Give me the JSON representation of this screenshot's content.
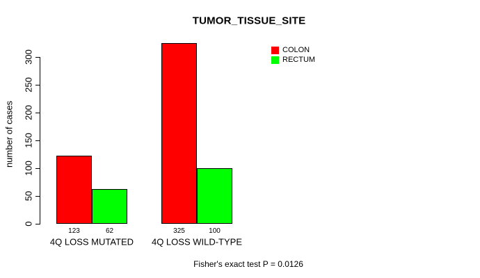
{
  "chart_data": {
    "type": "bar",
    "title": "TUMOR_TISSUE_SITE",
    "xlabel": "",
    "ylabel": "number of cases",
    "categories": [
      "4Q LOSS MUTATED",
      "4Q LOSS WILD-TYPE"
    ],
    "series": [
      {
        "name": "COLON",
        "color": "#ff0000",
        "values": [
          123,
          325
        ]
      },
      {
        "name": "RECTUM",
        "color": "#00ff00",
        "values": [
          62,
          100
        ]
      }
    ],
    "yticks": [
      0,
      50,
      100,
      150,
      200,
      250,
      300
    ],
    "ylim": [
      0,
      325
    ],
    "grid": false,
    "legend_position": "top-right",
    "bar_border_color": "#000000",
    "annotation": "Fisher's exact test P = 0.0126"
  }
}
